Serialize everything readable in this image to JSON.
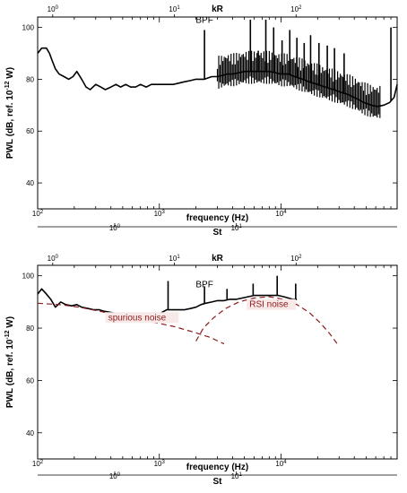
{
  "chart_data": [
    {
      "type": "line",
      "panel": "top",
      "xlabel": "frequency (Hz)",
      "ylabel": "PWL (dB, ref. 10",
      "ylabel_sup": "-12",
      "ylabel_tail": " W)",
      "top_axis_label": "kR",
      "bottom_axis_label": "St",
      "xscale": "log",
      "xlim": [
        100,
        90000
      ],
      "ylim": [
        30,
        104
      ],
      "yticks": [
        40,
        60,
        80,
        100
      ],
      "xticks": [
        {
          "value": 100,
          "base": "10",
          "exp": "2"
        },
        {
          "value": 1000,
          "base": "10",
          "exp": "3"
        },
        {
          "value": 10000,
          "base": "10",
          "exp": "4"
        }
      ],
      "top_ticks": [
        {
          "value": 133,
          "base": "10",
          "exp": "0"
        },
        {
          "value": 1330,
          "base": "10",
          "exp": "1"
        },
        {
          "value": 13300,
          "base": "10",
          "exp": "2"
        }
      ],
      "st_ticks": [
        {
          "value": 430,
          "base": "10",
          "exp": "0"
        },
        {
          "value": 4300,
          "base": "10",
          "exp": "1"
        }
      ],
      "annotations": [
        {
          "text": "BPF",
          "x": 2350,
          "y": 101
        }
      ],
      "series": [
        {
          "x": [
            100,
            108,
            118,
            125,
            132,
            140,
            150,
            165,
            180,
            195,
            210,
            230,
            250,
            270,
            300,
            330,
            360,
            400,
            440,
            480,
            530,
            580,
            640,
            700,
            780,
            860,
            950,
            1050,
            1150,
            1300,
            1450,
            1600,
            1800,
            2000,
            2200,
            2350,
            2500,
            2700,
            3000,
            3300,
            3600,
            4000,
            4500,
            5000,
            5600,
            6300,
            7000,
            8000,
            9000,
            10000,
            11500,
            13000,
            15000,
            17000,
            20000,
            23000,
            27000,
            31000,
            36000,
            42000,
            48000,
            55000,
            62000,
            70000,
            78000,
            85000,
            90000
          ],
          "y": [
            90,
            92,
            92,
            90,
            87,
            84,
            82,
            81,
            80,
            81,
            83,
            80,
            77,
            76,
            78,
            77,
            76,
            77,
            78,
            77,
            78,
            77,
            77,
            78,
            77,
            78,
            78,
            78,
            78,
            78,
            78.5,
            79,
            79.5,
            80,
            80,
            80,
            80.5,
            81,
            81,
            81.5,
            82,
            82,
            82.5,
            83,
            83,
            83,
            83,
            83,
            82.5,
            82,
            82,
            81,
            80,
            79,
            78,
            77,
            76,
            75,
            74,
            72.5,
            71,
            70,
            69.5,
            70,
            71,
            73,
            78
          ]
        }
      ],
      "peaks": [
        {
          "x": 2350,
          "y": 99
        },
        {
          "x": 5600,
          "y": 103
        },
        {
          "x": 7500,
          "y": 103
        },
        {
          "x": 8700,
          "y": 100
        },
        {
          "x": 6500,
          "y": 91
        },
        {
          "x": 10200,
          "y": 95
        },
        {
          "x": 11800,
          "y": 99
        },
        {
          "x": 13500,
          "y": 96
        },
        {
          "x": 15500,
          "y": 94
        },
        {
          "x": 17500,
          "y": 97
        },
        {
          "x": 20500,
          "y": 94
        },
        {
          "x": 24000,
          "y": 93
        },
        {
          "x": 27500,
          "y": 92
        },
        {
          "x": 33000,
          "y": 90
        },
        {
          "x": 80000,
          "y": 100
        }
      ]
    },
    {
      "type": "line",
      "panel": "bottom",
      "xlabel": "frequency (Hz)",
      "ylabel": "PWL (dB, ref. 10",
      "ylabel_sup": "-12",
      "ylabel_tail": " W)",
      "top_axis_label": "kR",
      "bottom_axis_label": "St",
      "xscale": "log",
      "xlim": [
        100,
        90000
      ],
      "ylim": [
        30,
        104
      ],
      "yticks": [
        40,
        60,
        80,
        100
      ],
      "xticks": [
        {
          "value": 100,
          "base": "10",
          "exp": "2"
        },
        {
          "value": 1000,
          "base": "10",
          "exp": "3"
        },
        {
          "value": 10000,
          "base": "10",
          "exp": "4"
        }
      ],
      "top_ticks": [
        {
          "value": 133,
          "base": "10",
          "exp": "0"
        },
        {
          "value": 1330,
          "base": "10",
          "exp": "1"
        },
        {
          "value": 13300,
          "base": "10",
          "exp": "2"
        }
      ],
      "st_ticks": [
        {
          "value": 430,
          "base": "10",
          "exp": "0"
        },
        {
          "value": 4300,
          "base": "10",
          "exp": "1"
        }
      ],
      "annotations": [
        {
          "text": "BPF",
          "x": 2350,
          "y": 95
        }
      ],
      "region_labels": [
        {
          "text": "spurious noise",
          "x": 380,
          "y": 83
        },
        {
          "text": "RSI noise",
          "x": 5500,
          "y": 88
        }
      ],
      "series": [
        {
          "x": [
            100,
            108,
            118,
            128,
            140,
            155,
            170,
            190,
            210,
            230,
            260,
            290,
            320,
            350,
            400,
            450,
            500,
            560,
            620,
            700,
            780,
            860,
            950,
            1050,
            1150,
            1300,
            1450,
            1600,
            1800,
            2000,
            2200,
            2400,
            2700,
            3000,
            3400,
            3800,
            4300,
            4800,
            5400,
            6000,
            6800,
            7600,
            8500,
            9500,
            10500,
            11500,
            12500,
            13500
          ],
          "y": [
            93,
            95,
            93,
            91,
            88,
            90,
            89,
            88.5,
            89,
            88,
            87.5,
            87,
            87,
            86.5,
            86,
            85.5,
            85,
            85,
            84.5,
            84,
            84,
            83.5,
            84.5,
            86,
            87,
            87,
            87,
            87,
            87.5,
            88,
            89,
            89.5,
            90,
            90.5,
            90.5,
            91,
            91,
            91.5,
            92,
            92.5,
            92.5,
            92.5,
            92.5,
            92.5,
            92,
            91.5,
            91,
            91
          ]
        },
        {
          "name": "",
          "style": "dashed",
          "x": [
            100,
            150,
            220,
            320,
            460,
            660,
            950,
            1350,
            1900,
            2600,
            3400
          ],
          "y": [
            89.5,
            89,
            88,
            86.5,
            85,
            83.5,
            82,
            80.5,
            78.5,
            76.5,
            74
          ]
        },
        {
          "name": "",
          "style": "dashed",
          "x": [
            2000,
            2300,
            2800,
            3500,
            4500,
            6000,
            8000,
            10500,
            13500,
            17000,
            21000,
            25000,
            29000
          ],
          "y": [
            75,
            80,
            84,
            87.5,
            90,
            91.5,
            92,
            91,
            89,
            86,
            82,
            78,
            74
          ]
        }
      ],
      "peaks": [
        {
          "x": 1180,
          "y": 98
        },
        {
          "x": 2350,
          "y": 96
        },
        {
          "x": 3600,
          "y": 95
        },
        {
          "x": 5900,
          "y": 97
        },
        {
          "x": 9300,
          "y": 100
        },
        {
          "x": 13200,
          "y": 97
        }
      ]
    }
  ]
}
